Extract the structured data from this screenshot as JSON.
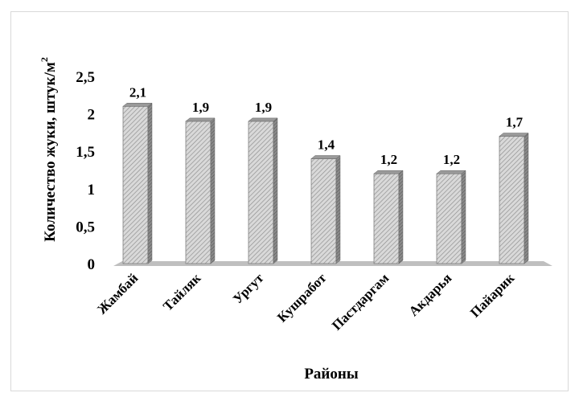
{
  "chart_data": {
    "type": "bar",
    "style": "3d-column-hatched",
    "categories": [
      "Жамбай",
      "Тайляк",
      "Ургут",
      "Кушработ",
      "Пастдаргам",
      "Акдарья",
      "Пайарик"
    ],
    "values": [
      2.1,
      1.9,
      1.9,
      1.4,
      1.2,
      1.2,
      1.7
    ],
    "data_labels": [
      "2,1",
      "1,9",
      "1,9",
      "1,4",
      "1,2",
      "1,2",
      "1,7"
    ],
    "yticks": [
      "0",
      "0,5",
      "1",
      "1,5",
      "2",
      "2,5"
    ],
    "ylim": [
      0,
      2.5
    ],
    "xlabel": "Районы",
    "ylabel": "Количество жуки, штук/м",
    "ylabel_superscript": "2",
    "grid": false,
    "legend": "none",
    "colors": {
      "bar_face": "#d9d9d9",
      "bar_hatch": "#8c8c8c",
      "bar_side": "#7f7f7f",
      "floor": "#bfbfbf"
    }
  }
}
